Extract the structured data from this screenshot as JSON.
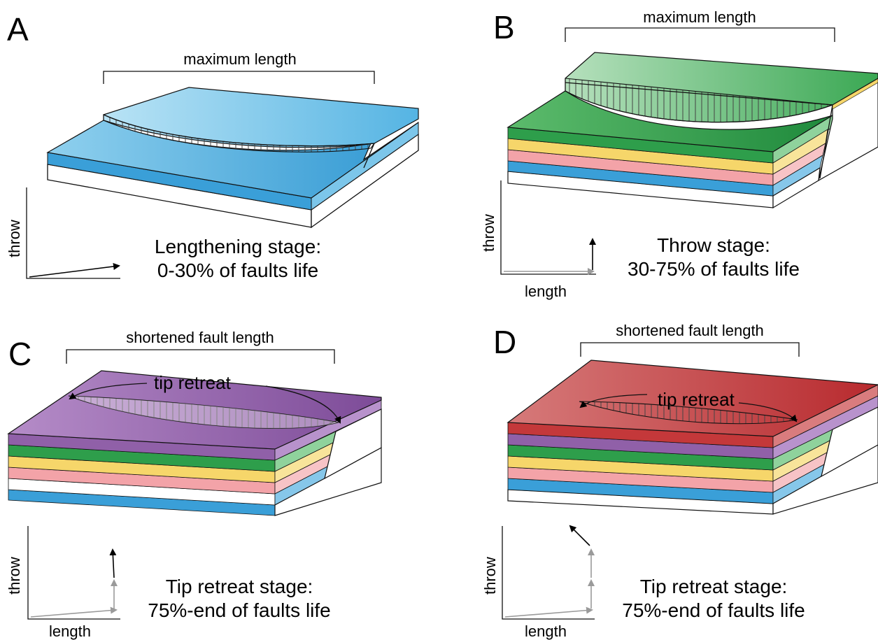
{
  "panels": [
    {
      "id": "A",
      "letter": "A",
      "bracket_label": "maximum length",
      "stage_line1": "Lengthening stage:",
      "stage_line2": "0-30% of faults life",
      "axis_y_label": "throw",
      "axis_x_label": "",
      "top_color": "#4fb3e0"
    },
    {
      "id": "B",
      "letter": "B",
      "bracket_label": "maximum length",
      "stage_line1": "Throw stage:",
      "stage_line2": "30-75% of faults life",
      "axis_y_label": "throw",
      "axis_x_label": "length",
      "top_color": "#2e9e4b"
    },
    {
      "id": "C",
      "letter": "C",
      "bracket_label": "shortened fault length",
      "tip_label": "tip retreat",
      "stage_line1": "Tip retreat stage:",
      "stage_line2": "75%-end of faults life",
      "axis_y_label": "throw",
      "axis_x_label": "length",
      "top_color": "#9060a8"
    },
    {
      "id": "D",
      "letter": "D",
      "bracket_label": "shortened fault length",
      "tip_label": "tip retreat",
      "stage_line1": "Tip retreat stage:",
      "stage_line2": "75%-end of faults life",
      "axis_y_label": "throw",
      "axis_x_label": "length",
      "top_color": "#c4383a"
    }
  ],
  "layer_colors": {
    "blue": "#3a9fd8",
    "pink": "#f3a3a8",
    "yellow": "#f6d66a",
    "green": "#2e9e4b",
    "purple": "#9060a8",
    "red": "#c4383a"
  }
}
